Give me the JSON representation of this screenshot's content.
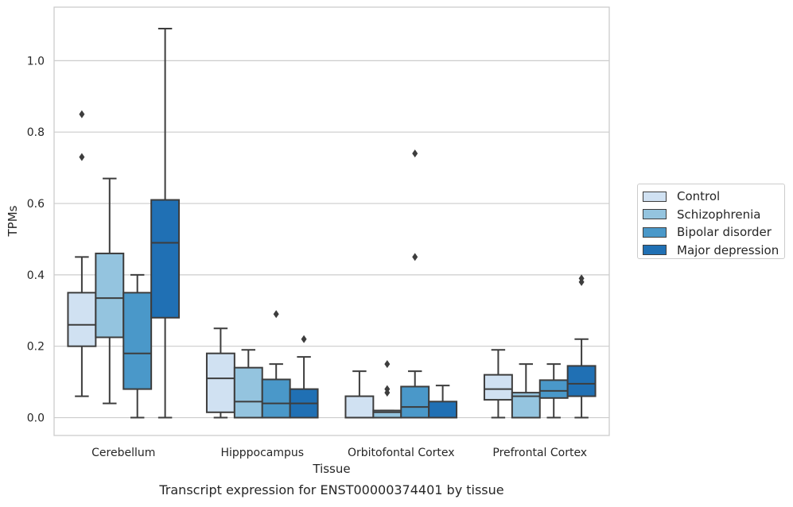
{
  "chart_data": {
    "type": "box",
    "title": "Transcript expression for ENST00000374401 by tissue",
    "xlabel": "Tissue",
    "ylabel": "TPMs",
    "ylim": [
      -0.05,
      1.15
    ],
    "yticks": [
      "0.0",
      "0.2",
      "0.4",
      "0.6",
      "0.8",
      "1.0"
    ],
    "grid": "horizontal",
    "legend_position": "right",
    "categories": [
      "Cerebellum",
      "Hipppocampus",
      "Orbitofontal Cortex",
      "Prefrontal Cortex"
    ],
    "series": [
      {
        "name": "Control",
        "color": "#d0e1f2",
        "boxes": [
          {
            "whisker_low": 0.06,
            "q1": 0.2,
            "median": 0.26,
            "q3": 0.35,
            "whisker_high": 0.45,
            "outliers": [
              0.85,
              0.73
            ]
          },
          {
            "whisker_low": 0.0,
            "q1": 0.015,
            "median": 0.11,
            "q3": 0.18,
            "whisker_high": 0.25,
            "outliers": []
          },
          {
            "whisker_low": 0.0,
            "q1": 0.0,
            "median": 0.0,
            "q3": 0.06,
            "whisker_high": 0.13,
            "outliers": []
          },
          {
            "whisker_low": 0.0,
            "q1": 0.05,
            "median": 0.08,
            "q3": 0.12,
            "whisker_high": 0.19,
            "outliers": []
          }
        ]
      },
      {
        "name": "Schizophrenia",
        "color": "#94c4df",
        "boxes": [
          {
            "whisker_low": 0.04,
            "q1": 0.225,
            "median": 0.335,
            "q3": 0.46,
            "whisker_high": 0.67,
            "outliers": []
          },
          {
            "whisker_low": 0.0,
            "q1": 0.0,
            "median": 0.045,
            "q3": 0.14,
            "whisker_high": 0.19,
            "outliers": []
          },
          {
            "whisker_low": 0.0,
            "q1": 0.0,
            "median": 0.015,
            "q3": 0.02,
            "whisker_high": 0.02,
            "outliers": [
              0.15,
              0.08,
              0.07
            ]
          },
          {
            "whisker_low": 0.0,
            "q1": 0.0,
            "median": 0.06,
            "q3": 0.07,
            "whisker_high": 0.15,
            "outliers": []
          }
        ]
      },
      {
        "name": "Bipolar disorder",
        "color": "#4a98c9",
        "boxes": [
          {
            "whisker_low": 0.0,
            "q1": 0.08,
            "median": 0.18,
            "q3": 0.35,
            "whisker_high": 0.4,
            "outliers": []
          },
          {
            "whisker_low": 0.0,
            "q1": 0.0,
            "median": 0.04,
            "q3": 0.107,
            "whisker_high": 0.15,
            "outliers": [
              0.29
            ]
          },
          {
            "whisker_low": 0.0,
            "q1": 0.0,
            "median": 0.03,
            "q3": 0.087,
            "whisker_high": 0.13,
            "outliers": [
              0.74,
              0.45
            ]
          },
          {
            "whisker_low": 0.0,
            "q1": 0.055,
            "median": 0.075,
            "q3": 0.105,
            "whisker_high": 0.15,
            "outliers": []
          }
        ]
      },
      {
        "name": "Major depression",
        "color": "#2070b4",
        "boxes": [
          {
            "whisker_low": 0.0,
            "q1": 0.28,
            "median": 0.49,
            "q3": 0.61,
            "whisker_high": 1.09,
            "outliers": []
          },
          {
            "whisker_low": 0.0,
            "q1": 0.0,
            "median": 0.04,
            "q3": 0.08,
            "whisker_high": 0.17,
            "outliers": [
              0.22
            ]
          },
          {
            "whisker_low": 0.0,
            "q1": 0.0,
            "median": 0.0,
            "q3": 0.045,
            "whisker_high": 0.09,
            "outliers": []
          },
          {
            "whisker_low": 0.0,
            "q1": 0.06,
            "median": 0.095,
            "q3": 0.145,
            "whisker_high": 0.22,
            "outliers": [
              0.39,
              0.38
            ]
          }
        ]
      }
    ]
  }
}
